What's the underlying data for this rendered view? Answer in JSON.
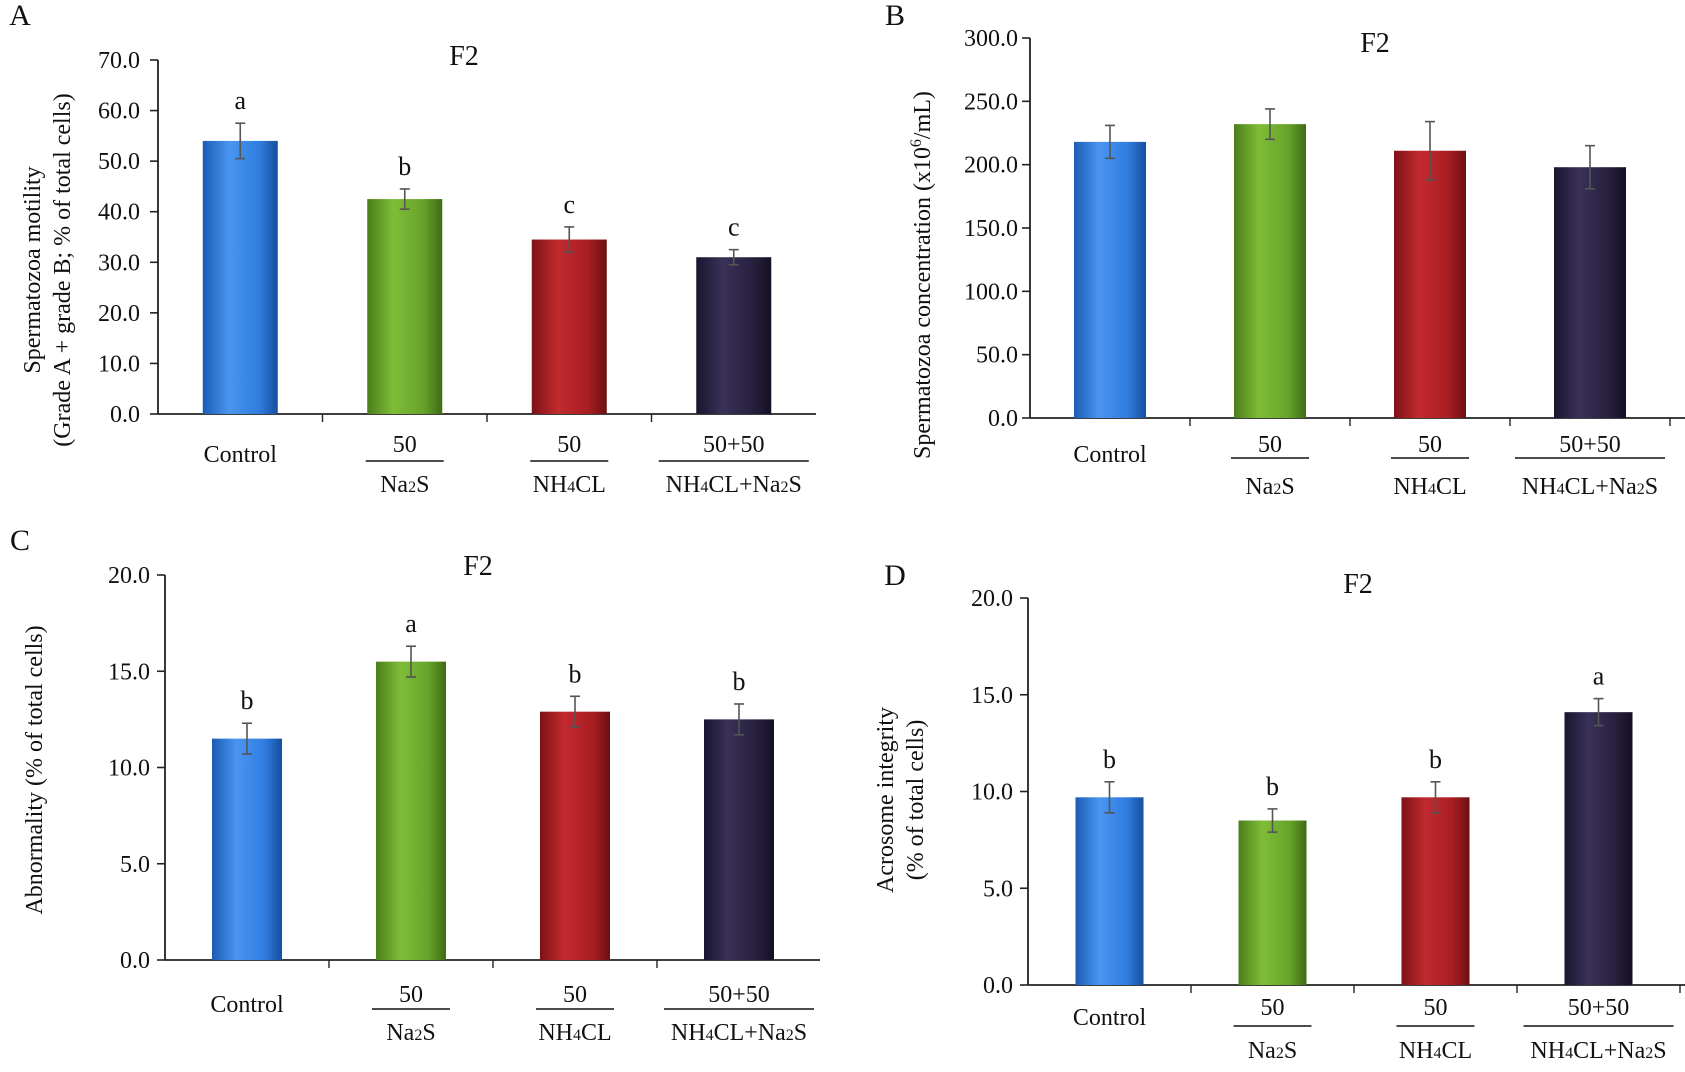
{
  "figure": {
    "colors": {
      "control": "#2f7de0",
      "na2s": "#67a32a",
      "nh4cl": "#a81e22",
      "combo": "#27203d",
      "axis": "#222222",
      "error_bar": "#555555"
    },
    "categories": [
      {
        "name": "Control",
        "dose": "",
        "label_main": "Control"
      },
      {
        "name": "Na2S",
        "dose": "50",
        "label_main": "Na",
        "sub1": "2",
        "rest1": "S"
      },
      {
        "name": "NH4CL",
        "dose": "50",
        "label_main": "NH",
        "sub1": "4",
        "rest1": "CL"
      },
      {
        "name": "NH4CL+Na2S",
        "dose": "50+50",
        "label_main": "NH",
        "sub1": "4",
        "rest1": "CL+Na",
        "sub2": "2",
        "rest2": "S"
      }
    ]
  },
  "chart_data": [
    {
      "type": "bar",
      "panel": "A",
      "title": "F2",
      "ylabel_line1": "Spermatozoa motility",
      "ylabel_line2": "(Grade A + grade B; % of total cells)",
      "ylim": [
        0,
        70
      ],
      "ytick_step": 10,
      "ytick_labels": [
        "0.0",
        "10.0",
        "20.0",
        "30.0",
        "40.0",
        "50.0",
        "60.0",
        "70.0"
      ],
      "categories": [
        "Control",
        "Na2S",
        "NH4CL",
        "NH4CL+Na2S"
      ],
      "values": [
        54.0,
        42.5,
        34.5,
        31.0
      ],
      "errors": [
        3.5,
        2.0,
        2.5,
        1.5
      ],
      "letters": [
        "a",
        "b",
        "c",
        "c"
      ]
    },
    {
      "type": "bar",
      "panel": "B",
      "title": "F2",
      "ylabel_line1": "Spermatozoa concentration (x10",
      "ylabel_sup": "6",
      "ylabel_tail": "/mL)",
      "ylim": [
        0,
        300
      ],
      "ytick_step": 50,
      "ytick_labels": [
        "0.0",
        "50.0",
        "100.0",
        "150.0",
        "200.0",
        "250.0",
        "300.0"
      ],
      "categories": [
        "Control",
        "Na2S",
        "NH4CL",
        "NH4CL+Na2S"
      ],
      "values": [
        218,
        232,
        211,
        198
      ],
      "errors": [
        13,
        12,
        23,
        17
      ],
      "letters": [
        "",
        "",
        "",
        ""
      ]
    },
    {
      "type": "bar",
      "panel": "C",
      "title": "F2",
      "ylabel_line1": "Abnormality (% of total cells)",
      "ylim": [
        0,
        20
      ],
      "ytick_step": 5,
      "ytick_labels": [
        "0.0",
        "5.0",
        "10.0",
        "15.0",
        "20.0"
      ],
      "categories": [
        "Control",
        "Na2S",
        "NH4CL",
        "NH4CL+Na2S"
      ],
      "values": [
        11.5,
        15.5,
        12.9,
        12.5
      ],
      "errors": [
        0.8,
        0.8,
        0.8,
        0.8
      ],
      "letters": [
        "b",
        "a",
        "b",
        "b"
      ]
    },
    {
      "type": "bar",
      "panel": "D",
      "title": "F2",
      "ylabel_line1": "Acrosome integrity",
      "ylabel_line2": "(% of total cells)",
      "ylim": [
        0,
        20
      ],
      "ytick_step": 5,
      "ytick_labels": [
        "0.0",
        "5.0",
        "10.0",
        "15.0",
        "20.0"
      ],
      "categories": [
        "Control",
        "Na2S",
        "NH4CL",
        "NH4CL+Na2S"
      ],
      "values": [
        9.7,
        8.5,
        9.7,
        14.1
      ],
      "errors": [
        0.8,
        0.6,
        0.8,
        0.7
      ],
      "letters": [
        "b",
        "b",
        "b",
        "a"
      ]
    }
  ]
}
